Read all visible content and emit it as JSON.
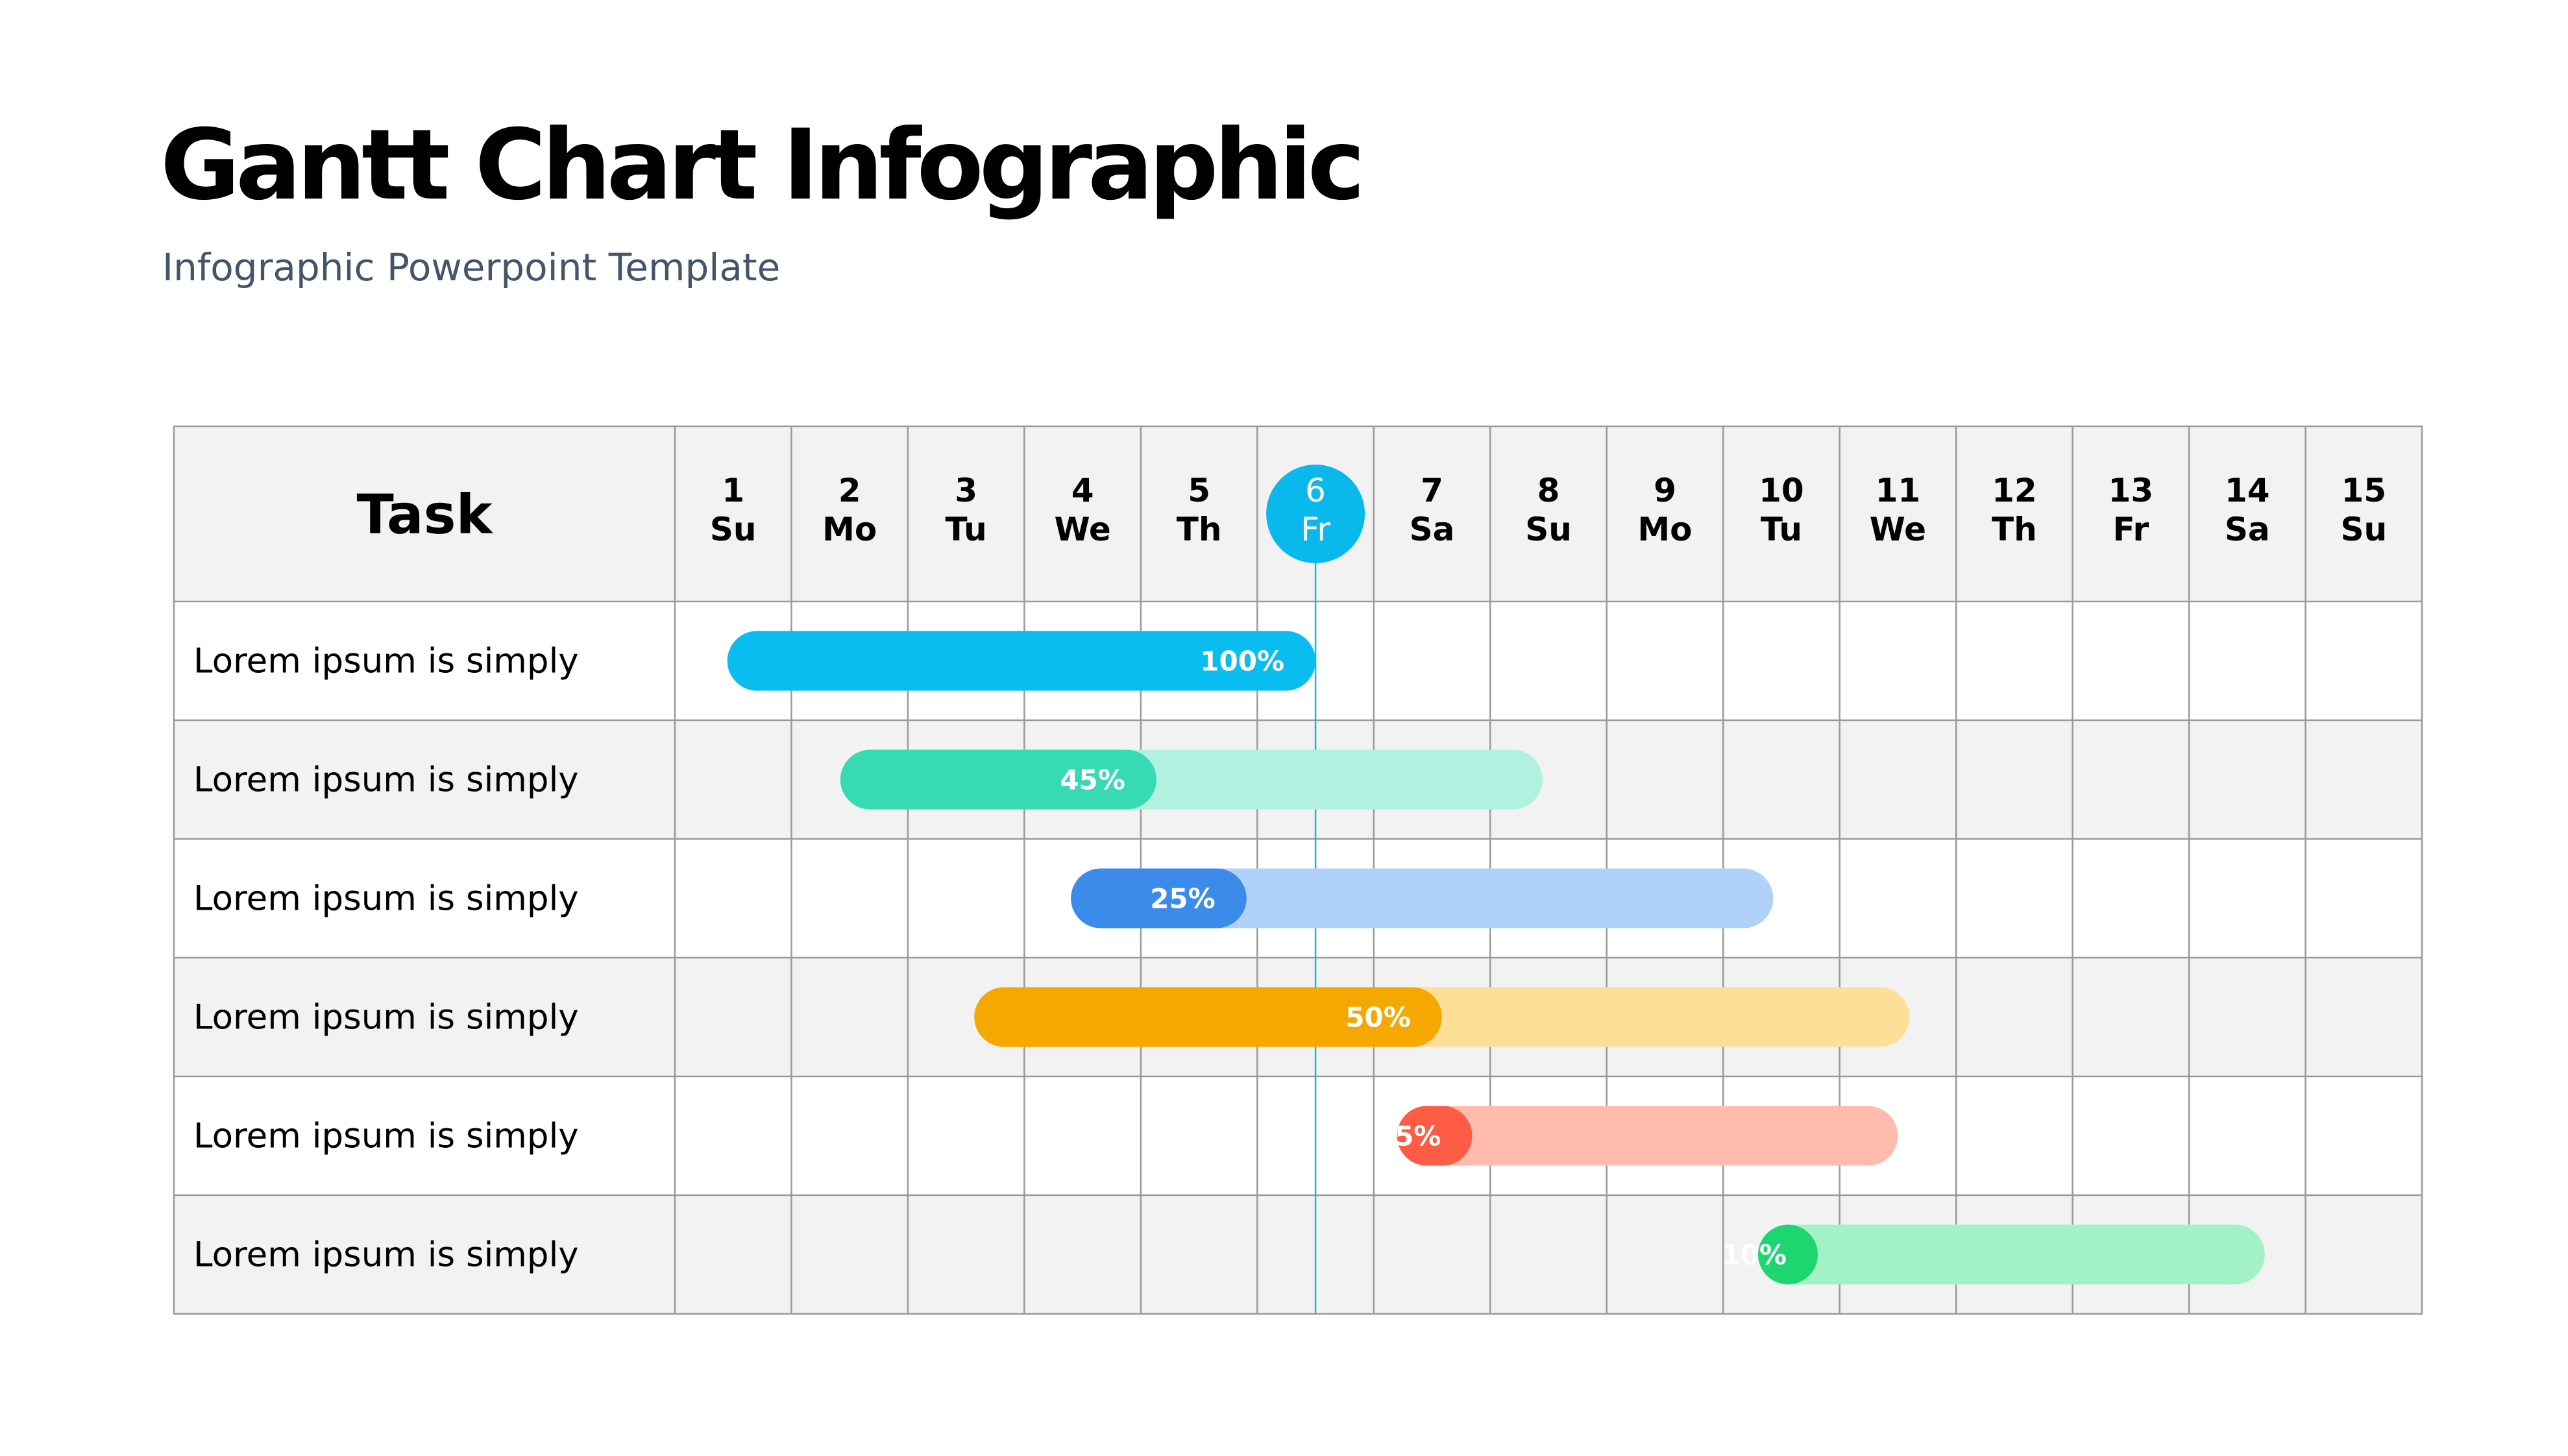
{
  "header": {
    "title": "Gantt Chart Infographic",
    "subtitle": "Infographic Powerpoint Template"
  },
  "colors": {
    "grid": "#9a9a9a",
    "row_shade": "#f2f2f2",
    "today_marker": "#0ab9ec",
    "text": "#000000"
  },
  "chart_data": {
    "type": "gantt",
    "task_header": "Task",
    "days": [
      {
        "num": "1",
        "dow": "Su"
      },
      {
        "num": "2",
        "dow": "Mo"
      },
      {
        "num": "3",
        "dow": "Tu"
      },
      {
        "num": "4",
        "dow": "We"
      },
      {
        "num": "5",
        "dow": "Th"
      },
      {
        "num": "6",
        "dow": "Fr"
      },
      {
        "num": "7",
        "dow": "Sa"
      },
      {
        "num": "8",
        "dow": "Su"
      },
      {
        "num": "9",
        "dow": "Mo"
      },
      {
        "num": "10",
        "dow": "Tu"
      },
      {
        "num": "11",
        "dow": "We"
      },
      {
        "num": "12",
        "dow": "Th"
      },
      {
        "num": "13",
        "dow": "Fr"
      },
      {
        "num": "14",
        "dow": "Sa"
      },
      {
        "num": "15",
        "dow": "Su"
      }
    ],
    "today": 6,
    "tasks": [
      {
        "name": "Lorem ipsum is simply",
        "start": 1.45,
        "end": 6.5,
        "progress": 100,
        "label": "100%",
        "color": "#0abdf0",
        "track_color": "#0abdf0"
      },
      {
        "name": "Lorem ipsum is simply",
        "start": 2.42,
        "end": 8.45,
        "progress": 45,
        "label": "45%",
        "color": "#37dbb3",
        "track_color": "#b0f1e0"
      },
      {
        "name": "Lorem ipsum is simply",
        "start": 4.4,
        "end": 10.43,
        "progress": 25,
        "label": "25%",
        "color": "#3a8bea",
        "track_color": "#b0d1f8"
      },
      {
        "name": "Lorem ipsum is simply",
        "start": 3.57,
        "end": 11.6,
        "progress": 50,
        "label": "50%",
        "color": "#f5a800",
        "track_color": "#fddf98"
      },
      {
        "name": "Lorem ipsum is simply",
        "start": 7.2,
        "end": 11.5,
        "progress": 15,
        "label": "15%",
        "color": "#fe5c45",
        "track_color": "#ffbcad"
      },
      {
        "name": "Lorem ipsum is simply",
        "start": 10.3,
        "end": 14.65,
        "progress": 10,
        "label": "10%",
        "color": "#1dd670",
        "track_color": "#a3f2c5"
      }
    ]
  }
}
